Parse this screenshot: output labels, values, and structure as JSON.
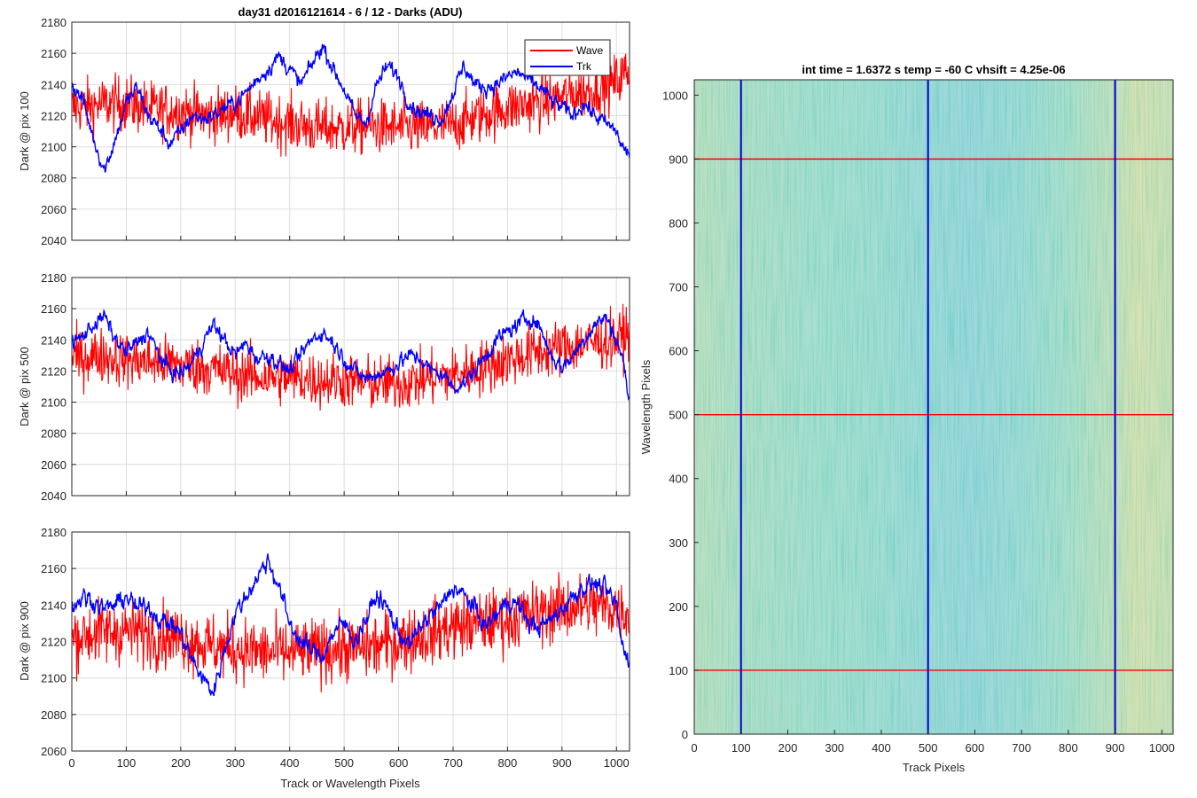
{
  "chart_data": [
    {
      "type": "line",
      "title": "day31 d2016121614 - 6 / 12 - Darks (ADU)",
      "xlabel": "",
      "ylabel": "Dark @ pix 100",
      "xlim": [
        0,
        1024
      ],
      "ylim": [
        2040,
        2180
      ],
      "xticks": [
        "0",
        "100",
        "200",
        "300",
        "400",
        "500",
        "600",
        "700",
        "800",
        "900",
        "1000"
      ],
      "yticks": [
        "2040",
        "2060",
        "2080",
        "2100",
        "2120",
        "2140",
        "2160",
        "2180"
      ],
      "grid": true,
      "legend": {
        "placement": "top-right",
        "entries": [
          "Wave",
          "Trk"
        ]
      },
      "series": [
        {
          "name": "Wave",
          "color": "#ff0000",
          "x": [
            0,
            50,
            100,
            150,
            200,
            250,
            300,
            350,
            400,
            450,
            500,
            550,
            600,
            650,
            700,
            750,
            800,
            850,
            900,
            950,
            1000,
            1024
          ],
          "y": [
            2125,
            2127,
            2128,
            2124,
            2123,
            2120,
            2122,
            2118,
            2115,
            2112,
            2112,
            2113,
            2112,
            2112,
            2114,
            2120,
            2125,
            2128,
            2132,
            2136,
            2142,
            2150
          ]
        },
        {
          "name": "Trk",
          "color": "#0000ff",
          "x": [
            0,
            20,
            40,
            60,
            80,
            100,
            120,
            140,
            160,
            180,
            200,
            220,
            240,
            260,
            280,
            300,
            320,
            340,
            360,
            380,
            400,
            420,
            440,
            460,
            480,
            500,
            520,
            540,
            560,
            580,
            600,
            620,
            640,
            660,
            680,
            700,
            720,
            740,
            760,
            780,
            800,
            820,
            840,
            860,
            880,
            900,
            920,
            940,
            960,
            980,
            1000,
            1010,
            1024
          ],
          "y": [
            2140,
            2130,
            2105,
            2085,
            2105,
            2128,
            2138,
            2120,
            2112,
            2102,
            2110,
            2120,
            2118,
            2120,
            2125,
            2128,
            2135,
            2143,
            2150,
            2158,
            2150,
            2140,
            2152,
            2165,
            2150,
            2137,
            2120,
            2115,
            2140,
            2152,
            2145,
            2128,
            2122,
            2120,
            2118,
            2135,
            2152,
            2140,
            2138,
            2140,
            2145,
            2148,
            2142,
            2138,
            2130,
            2125,
            2120,
            2128,
            2120,
            2115,
            2110,
            2100,
            2095
          ]
        }
      ]
    },
    {
      "type": "line",
      "title": "",
      "xlabel": "",
      "ylabel": "Dark @ pix 500",
      "xlim": [
        0,
        1024
      ],
      "ylim": [
        2040,
        2180
      ],
      "xticks": [
        "0",
        "100",
        "200",
        "300",
        "400",
        "500",
        "600",
        "700",
        "800",
        "900",
        "1000"
      ],
      "yticks": [
        "2040",
        "2060",
        "2080",
        "2100",
        "2120",
        "2140",
        "2160",
        "2180"
      ],
      "grid": true,
      "series": [
        {
          "name": "Wave",
          "color": "#ff0000",
          "x": [
            0,
            50,
            100,
            150,
            200,
            250,
            300,
            350,
            400,
            450,
            500,
            550,
            600,
            650,
            700,
            750,
            800,
            850,
            900,
            950,
            1000,
            1024
          ],
          "y": [
            2128,
            2130,
            2127,
            2126,
            2124,
            2122,
            2118,
            2116,
            2116,
            2114,
            2114,
            2112,
            2112,
            2115,
            2117,
            2122,
            2127,
            2132,
            2135,
            2138,
            2140,
            2145
          ]
        },
        {
          "name": "Trk",
          "color": "#0000ff",
          "x": [
            0,
            20,
            40,
            60,
            80,
            100,
            120,
            140,
            160,
            180,
            200,
            220,
            240,
            260,
            280,
            300,
            320,
            340,
            360,
            380,
            400,
            420,
            440,
            460,
            480,
            500,
            520,
            540,
            560,
            580,
            600,
            620,
            640,
            660,
            680,
            700,
            720,
            740,
            760,
            780,
            800,
            820,
            840,
            860,
            880,
            900,
            920,
            940,
            960,
            980,
            1000,
            1010,
            1024
          ],
          "y": [
            2138,
            2142,
            2150,
            2155,
            2140,
            2132,
            2138,
            2145,
            2130,
            2120,
            2118,
            2125,
            2138,
            2150,
            2140,
            2130,
            2138,
            2128,
            2130,
            2125,
            2120,
            2130,
            2140,
            2145,
            2138,
            2128,
            2120,
            2115,
            2118,
            2120,
            2125,
            2130,
            2128,
            2120,
            2118,
            2110,
            2112,
            2120,
            2130,
            2140,
            2145,
            2150,
            2155,
            2148,
            2130,
            2122,
            2130,
            2140,
            2150,
            2155,
            2140,
            2130,
            2100
          ]
        }
      ]
    },
    {
      "type": "line",
      "title": "",
      "xlabel": "Track or Wavelength Pixels",
      "ylabel": "Dark @ pix 900",
      "xlim": [
        0,
        1024
      ],
      "ylim": [
        2060,
        2180
      ],
      "xticks": [
        "0",
        "100",
        "200",
        "300",
        "400",
        "500",
        "600",
        "700",
        "800",
        "900",
        "1000"
      ],
      "yticks": [
        "2060",
        "2080",
        "2100",
        "2120",
        "2140",
        "2160",
        "2180"
      ],
      "grid": true,
      "series": [
        {
          "name": "Wave",
          "color": "#ff0000",
          "x": [
            0,
            50,
            100,
            150,
            200,
            250,
            300,
            350,
            400,
            450,
            500,
            550,
            600,
            650,
            700,
            750,
            800,
            850,
            900,
            950,
            1000,
            1024
          ],
          "y": [
            2122,
            2125,
            2126,
            2124,
            2122,
            2118,
            2116,
            2114,
            2114,
            2115,
            2116,
            2117,
            2120,
            2124,
            2128,
            2130,
            2132,
            2135,
            2138,
            2140,
            2138,
            2135
          ]
        },
        {
          "name": "Trk",
          "color": "#0000ff",
          "x": [
            0,
            20,
            40,
            60,
            80,
            100,
            120,
            140,
            160,
            180,
            200,
            220,
            240,
            260,
            280,
            300,
            320,
            340,
            360,
            380,
            400,
            420,
            440,
            460,
            480,
            500,
            520,
            540,
            560,
            580,
            600,
            620,
            640,
            660,
            680,
            700,
            720,
            740,
            760,
            780,
            800,
            820,
            840,
            860,
            880,
            900,
            920,
            940,
            960,
            980,
            1000,
            1010,
            1024
          ],
          "y": [
            2138,
            2145,
            2142,
            2138,
            2140,
            2145,
            2138,
            2140,
            2132,
            2130,
            2125,
            2110,
            2100,
            2092,
            2115,
            2135,
            2145,
            2155,
            2165,
            2150,
            2130,
            2120,
            2115,
            2112,
            2125,
            2130,
            2120,
            2132,
            2145,
            2138,
            2125,
            2118,
            2128,
            2135,
            2140,
            2150,
            2145,
            2138,
            2128,
            2135,
            2142,
            2140,
            2130,
            2128,
            2132,
            2138,
            2145,
            2150,
            2152,
            2148,
            2140,
            2118,
            2110
          ]
        }
      ]
    },
    {
      "type": "heatmap",
      "title": "int time = 1.6372 s    temp = -60 C    vhsift = 4.25e-06",
      "xlabel": "Track Pixels",
      "ylabel": "Wavelength Pixels",
      "xlim": [
        0,
        1024
      ],
      "ylim": [
        0,
        1024
      ],
      "xticks": [
        "0",
        "100",
        "200",
        "300",
        "400",
        "500",
        "600",
        "700",
        "800",
        "900",
        "1000"
      ],
      "yticks": [
        "0",
        "100",
        "200",
        "300",
        "400",
        "500",
        "600",
        "700",
        "800",
        "900",
        "1000"
      ],
      "colormap": "parula",
      "column_profile": {
        "x": [
          0,
          100,
          200,
          300,
          400,
          500,
          600,
          700,
          800,
          900,
          950,
          1024
        ],
        "level": [
          0.58,
          0.54,
          0.52,
          0.5,
          0.48,
          0.44,
          0.42,
          0.46,
          0.52,
          0.6,
          0.66,
          0.62
        ]
      },
      "markers": {
        "vertical": {
          "color": "#0000cc",
          "x": [
            100,
            500,
            900
          ]
        },
        "horizontal": {
          "color": "#ff0000",
          "y": [
            100,
            500,
            900
          ]
        }
      }
    }
  ]
}
